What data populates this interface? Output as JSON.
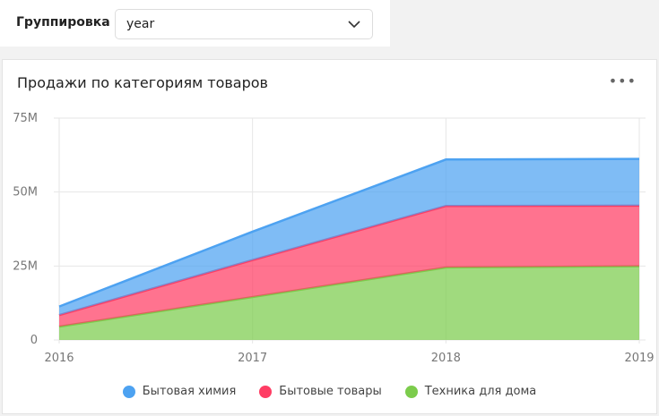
{
  "controls": {
    "grouping_label": "Группировка",
    "grouping_value": "year"
  },
  "widget": {
    "title": "Продажи по категориям товаров",
    "menu_label": "•••"
  },
  "chart_data": {
    "type": "area",
    "stacked": true,
    "title": "Продажи по категориям товаров",
    "categories": [
      "2016",
      "2017",
      "2018",
      "2019"
    ],
    "y_ticks": [
      "0",
      "25M",
      "50M",
      "75M"
    ],
    "ylim": [
      0,
      75000000
    ],
    "grid": true,
    "legend_position": "bottom",
    "series": [
      {
        "name": "Техника для дома",
        "color": "#7ccc4c",
        "values": [
          4500000,
          14500000,
          24500000,
          24900000
        ]
      },
      {
        "name": "Бытовые товары",
        "color": "#ff3d64",
        "values": [
          3900000,
          12500000,
          20800000,
          20500000
        ]
      },
      {
        "name": "Бытовая химия",
        "color": "#4da2f1",
        "values": [
          2900000,
          9600000,
          15700000,
          15800000
        ]
      }
    ],
    "legend": [
      "Бытовая химия",
      "Бытовые товары",
      "Техника для дома"
    ]
  }
}
